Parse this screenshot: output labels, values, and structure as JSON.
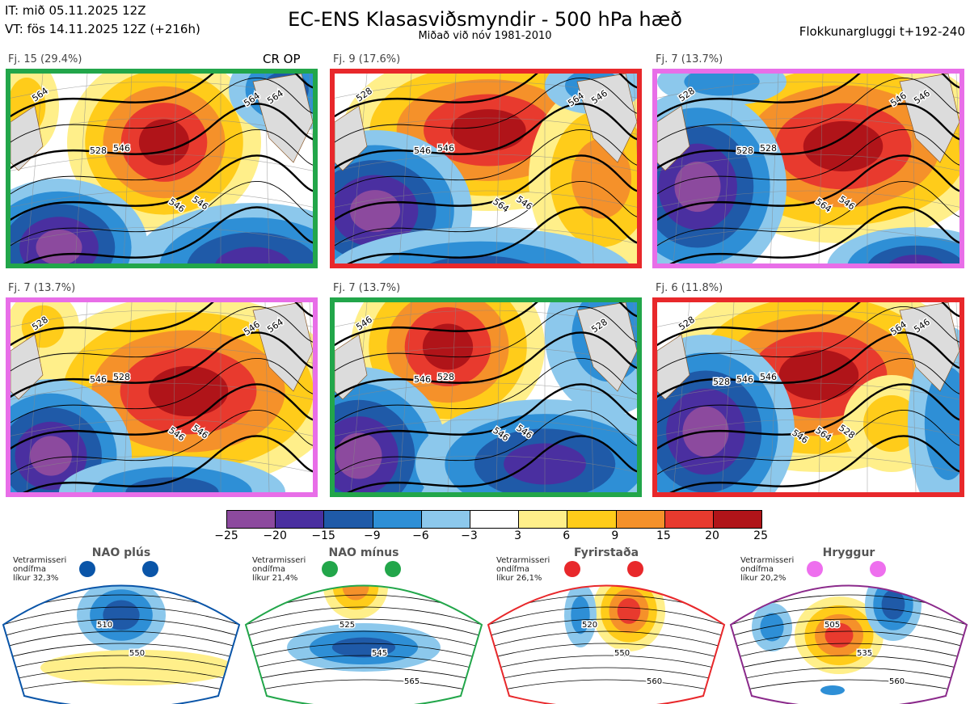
{
  "header": {
    "it_line": "IT: mið 05.11.2025 12Z",
    "vt_line": "VT: fös 14.11.2025 12Z  (+216h)",
    "title": "EC-ENS Klasasviðsmyndir - 500 hPa hæð",
    "subtitle": "Miðað við nóv 1981-2010",
    "window": "Flokkunargluggi t+192-240"
  },
  "panels": [
    {
      "label": "Fj. 15 (29.4%)",
      "extra": "CR OP",
      "border": "#22a64a",
      "contours": [
        "564",
        "546",
        "546",
        "564",
        "528",
        "546",
        "564"
      ]
    },
    {
      "label": "Fj. 9 (17.6%)",
      "extra": "",
      "border": "#e8282b",
      "contours": [
        "528",
        "546",
        "546",
        "546",
        "546",
        "564",
        "564"
      ]
    },
    {
      "label": "Fj. 7 (13.7%)",
      "extra": "",
      "border": "#e86ee8",
      "contours": [
        "528",
        "528",
        "546",
        "546",
        "528",
        "564",
        "546"
      ]
    },
    {
      "label": "Fj. 7 (13.7%)",
      "extra": "",
      "border": "#e86ee8",
      "contours": [
        "528",
        "528",
        "546",
        "564",
        "546",
        "546",
        "546"
      ]
    },
    {
      "label": "Fj. 7 (13.7%)",
      "extra": "",
      "border": "#22a64a",
      "contours": [
        "546",
        "528",
        "546",
        "528",
        "546",
        "546"
      ]
    },
    {
      "label": "Fj. 6 (11.8%)",
      "extra": "",
      "border": "#e8282b",
      "contours": [
        "528",
        "546",
        "528",
        "546",
        "546",
        "564",
        "564",
        "528",
        "546"
      ]
    }
  ],
  "colorbar": {
    "colors": [
      "#8c4a9e",
      "#4a2fa0",
      "#1f5aa8",
      "#2e8fd6",
      "#8cc8ec",
      "#ffffff",
      "#ffef8a",
      "#ffcc1a",
      "#f5912a",
      "#e83a2e",
      "#b01419"
    ],
    "labels": [
      "−25",
      "−20",
      "−15",
      "−9",
      "−6",
      "−3",
      "3",
      "6",
      "9",
      "15",
      "20",
      "25"
    ]
  },
  "regimes": [
    {
      "name": "NAO plús",
      "note": "Vetrarmisseri\nondífma\nlíkur 32,3%",
      "color": "#0a55a8",
      "contours": [
        "510",
        "550"
      ]
    },
    {
      "name": "NAO mínus",
      "note": "Vetrarmisseri\nondífma\nlíkur 21,4%",
      "color": "#22a64a",
      "contours": [
        "525",
        "545",
        "565"
      ]
    },
    {
      "name": "Fyrirstaða",
      "note": "Vetrarmisseri\nondífma\nlíkur 26,1%",
      "color": "#e8282b",
      "contours": [
        "520",
        "550",
        "560"
      ]
    },
    {
      "name": "Hryggur",
      "note": "Vetrarmisseri\nondífma\nlíkur 20,2%",
      "color": "#8b2a8b",
      "dot_color": "#ee6fee",
      "contours": [
        "505",
        "535",
        "560"
      ]
    }
  ]
}
